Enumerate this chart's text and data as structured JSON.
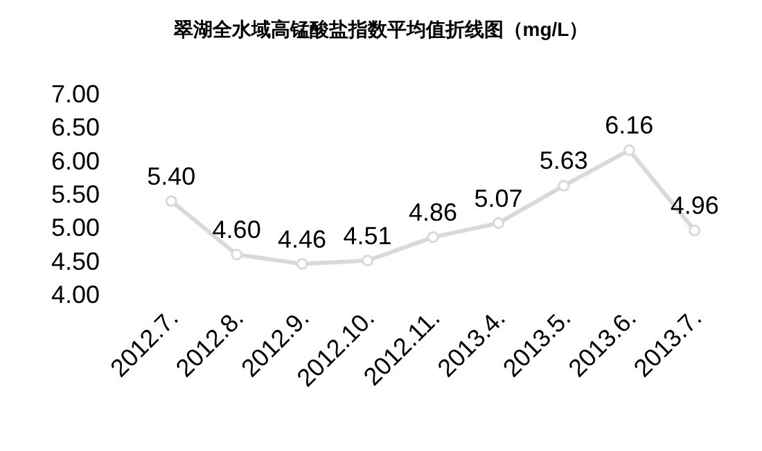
{
  "chart_data": {
    "type": "line",
    "title": "翠湖全水域高锰酸盐指数平均值折线图（mg/L）",
    "categories": [
      "2012.7.",
      "2012.8.",
      "2012.9.",
      "2012.10.",
      "2012.11.",
      "2013.4.",
      "2013.5.",
      "2013.6.",
      "2013.7."
    ],
    "series": [
      {
        "color": "#d9d9d9",
        "values": [
          5.4,
          4.6,
          4.46,
          4.51,
          4.86,
          5.07,
          5.63,
          6.16,
          4.96
        ],
        "value_labels": [
          "5.40",
          "4.60",
          "4.46",
          "4.51",
          "4.86",
          "5.07",
          "5.63",
          "6.16",
          "4.96"
        ]
      }
    ],
    "ylim": [
      4,
      7
    ],
    "yticks": [
      {
        "value": 4,
        "label": "4.00"
      },
      {
        "value": 4.5,
        "label": "4.50"
      },
      {
        "value": 5,
        "label": "5.00"
      },
      {
        "value": 5.5,
        "label": "5.50"
      },
      {
        "value": 6,
        "label": "6.00"
      },
      {
        "value": 6.5,
        "label": "6.50"
      },
      {
        "value": 7,
        "label": "7.00"
      }
    ],
    "grid": false,
    "marker": "circle",
    "line_style": "solid"
  }
}
